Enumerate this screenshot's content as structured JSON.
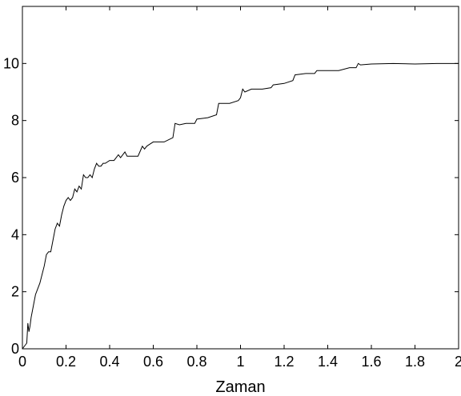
{
  "chart_data": {
    "type": "line",
    "title": "",
    "xlabel": "Zaman",
    "ylabel": "",
    "xlim": [
      0,
      2
    ],
    "ylim": [
      0,
      12
    ],
    "grid": false,
    "legend": "none",
    "xticks": [
      "0",
      "0.2",
      "0.4",
      "0.6",
      "0.8",
      "1",
      "1.2",
      "1.4",
      "1.6",
      "1.8",
      "2"
    ],
    "yticks": [
      "0",
      "2",
      "4",
      "6",
      "8",
      "10"
    ],
    "line_color": "#000000",
    "series": [
      {
        "x": [
          0,
          0.02,
          0.025,
          0.03,
          0.035,
          0.04,
          0.05,
          0.06,
          0.07,
          0.08,
          0.09,
          0.1,
          0.11,
          0.12,
          0.13,
          0.14,
          0.15,
          0.16,
          0.17,
          0.18,
          0.19,
          0.2,
          0.21,
          0.22,
          0.23,
          0.24,
          0.25,
          0.26,
          0.27,
          0.28,
          0.29,
          0.3,
          0.31,
          0.32,
          0.33,
          0.34,
          0.35,
          0.36,
          0.37,
          0.38,
          0.4,
          0.42,
          0.43,
          0.44,
          0.45,
          0.47,
          0.48,
          0.5,
          0.53,
          0.55,
          0.56,
          0.57,
          0.58,
          0.6,
          0.65,
          0.69,
          0.7,
          0.72,
          0.75,
          0.79,
          0.8,
          0.85,
          0.89,
          0.9,
          0.95,
          0.99,
          1.0,
          1.01,
          1.02,
          1.05,
          1.1,
          1.14,
          1.15,
          1.2,
          1.24,
          1.25,
          1.3,
          1.34,
          1.35,
          1.4,
          1.45,
          1.5,
          1.53,
          1.54,
          1.55,
          1.6,
          1.7,
          1.8,
          1.9,
          2.0
        ],
        "y": [
          0,
          0.2,
          0.9,
          0.6,
          0.8,
          1.1,
          1.5,
          1.9,
          2.1,
          2.3,
          2.6,
          2.9,
          3.3,
          3.4,
          3.4,
          3.8,
          4.2,
          4.4,
          4.3,
          4.7,
          5.0,
          5.2,
          5.3,
          5.2,
          5.3,
          5.6,
          5.5,
          5.7,
          5.6,
          6.1,
          6.0,
          6.0,
          6.1,
          6.0,
          6.3,
          6.5,
          6.4,
          6.4,
          6.5,
          6.5,
          6.6,
          6.6,
          6.7,
          6.8,
          6.7,
          6.9,
          6.75,
          6.75,
          6.75,
          7.1,
          7.0,
          7.1,
          7.15,
          7.25,
          7.25,
          7.4,
          7.9,
          7.85,
          7.9,
          7.9,
          8.05,
          8.1,
          8.2,
          8.6,
          8.6,
          8.7,
          8.8,
          9.1,
          9.0,
          9.1,
          9.1,
          9.15,
          9.25,
          9.3,
          9.4,
          9.6,
          9.65,
          9.65,
          9.75,
          9.75,
          9.75,
          9.85,
          9.85,
          10.0,
          9.95,
          9.98,
          10.0,
          9.98,
          10.0,
          10.0
        ]
      }
    ]
  }
}
